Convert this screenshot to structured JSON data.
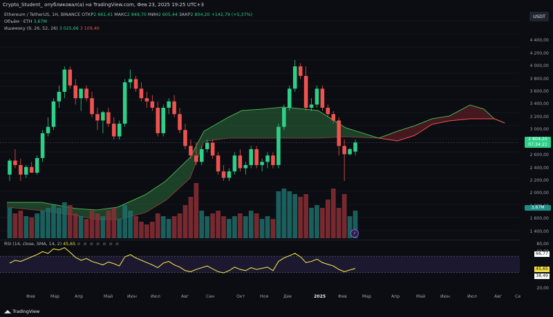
{
  "header": {
    "attribution": "Crypto_Student_ опубликовал(а) на TradingView.com, Фев 23, 2025 19:25 UTC+3"
  },
  "legend": {
    "symbol": "Ethereum / TetherUS, 1Н, BINANCE",
    "otkr_label": "ОТКР",
    "otkr_value": "2 661,41",
    "maks_label": "МАКС",
    "maks_value": "2 849,70",
    "min_label": "МИН",
    "min_value": "2 605,44",
    "zakr_label": "ЗАКР",
    "zakr_value": "2 804,20",
    "change": "+142,79 (+5,37%)",
    "volume_label": "Объём · ETH",
    "volume_value": "3,67M",
    "ichimoku_label": "Ишимоку (9, 26, 52, 26)",
    "ichimoku_v1": "3 025,66",
    "ichimoku_v2": "3 109,40"
  },
  "currency_button": "USDT",
  "price_axis": [
    "4 400,00",
    "4 200,00",
    "4 000,00",
    "3 800,00",
    "3 600,00",
    "3 400,00",
    "3 200,00",
    "3 000,00",
    "2 600,00",
    "2 400,00",
    "2 200,00",
    "2 000,00",
    "1 800,00",
    "1 600,00",
    "1 400,00"
  ],
  "price_tag": {
    "price": "2 804,20",
    "countdown": "07:34:21"
  },
  "volume_tag": "3,67M",
  "rsi": {
    "legend_label": "RSI (14, close, SMA, 14, 2)",
    "legend_value": "45,65",
    "axis": [
      "80,00",
      "60,00",
      "20,00"
    ],
    "tag_66": "66,77",
    "tag_45": "45,65",
    "tag_38": "38,49"
  },
  "time_axis": [
    "Фев",
    "Мар",
    "Апр",
    "Май",
    "Июн",
    "Июл",
    "Авг",
    "Сен",
    "Окт",
    "Ноя",
    "Дек",
    "2025",
    "Фев",
    "Мар",
    "Апр",
    "Май",
    "Июн",
    "Июл",
    "Авг",
    "Се"
  ],
  "footer": "TradingView",
  "colors": {
    "up": "#2ecf88",
    "down": "#ef5350",
    "rsi": "#f5e04a",
    "background": "#0b0d12"
  },
  "chart_data": {
    "type": "candlestick",
    "title": "Ethereum / TetherUS, 1Н, BINANCE",
    "ylim": [
      1300,
      4500
    ],
    "candles": [
      {
        "o": 2300,
        "h": 2550,
        "l": 2200,
        "c": 2520
      },
      {
        "o": 2520,
        "h": 2700,
        "l": 2400,
        "c": 2450
      },
      {
        "o": 2450,
        "h": 2550,
        "l": 2200,
        "c": 2300
      },
      {
        "o": 2300,
        "h": 2450,
        "l": 2250,
        "c": 2420
      },
      {
        "o": 2420,
        "h": 2500,
        "l": 2330,
        "c": 2330
      },
      {
        "o": 2330,
        "h": 2600,
        "l": 2300,
        "c": 2560
      },
      {
        "o": 2560,
        "h": 3000,
        "l": 2500,
        "c": 2950
      },
      {
        "o": 2950,
        "h": 3200,
        "l": 2900,
        "c": 3050
      },
      {
        "o": 3050,
        "h": 3500,
        "l": 3000,
        "c": 3450
      },
      {
        "o": 3450,
        "h": 3700,
        "l": 3350,
        "c": 3600
      },
      {
        "o": 3600,
        "h": 4000,
        "l": 3500,
        "c": 3950
      },
      {
        "o": 3950,
        "h": 4000,
        "l": 3650,
        "c": 3700
      },
      {
        "o": 3700,
        "h": 3800,
        "l": 3400,
        "c": 3500
      },
      {
        "o": 3500,
        "h": 3650,
        "l": 3300,
        "c": 3650
      },
      {
        "o": 3650,
        "h": 3700,
        "l": 3450,
        "c": 3500
      },
      {
        "o": 3500,
        "h": 3600,
        "l": 3200,
        "c": 3250
      },
      {
        "o": 3250,
        "h": 3350,
        "l": 3000,
        "c": 3150
      },
      {
        "o": 3150,
        "h": 3300,
        "l": 2950,
        "c": 3280
      },
      {
        "o": 3280,
        "h": 3350,
        "l": 3050,
        "c": 3100
      },
      {
        "o": 3100,
        "h": 3200,
        "l": 2850,
        "c": 2900
      },
      {
        "o": 2900,
        "h": 3150,
        "l": 2850,
        "c": 3100
      },
      {
        "o": 3100,
        "h": 3800,
        "l": 3050,
        "c": 3750
      },
      {
        "o": 3750,
        "h": 3950,
        "l": 3650,
        "c": 3800
      },
      {
        "o": 3800,
        "h": 3850,
        "l": 3600,
        "c": 3650
      },
      {
        "o": 3650,
        "h": 3750,
        "l": 3450,
        "c": 3500
      },
      {
        "o": 3500,
        "h": 3600,
        "l": 3350,
        "c": 3450
      },
      {
        "o": 3450,
        "h": 3550,
        "l": 3300,
        "c": 3350
      },
      {
        "o": 3350,
        "h": 3450,
        "l": 2900,
        "c": 2950
      },
      {
        "o": 2950,
        "h": 3400,
        "l": 2900,
        "c": 3350
      },
      {
        "o": 3350,
        "h": 3500,
        "l": 3250,
        "c": 3450
      },
      {
        "o": 3450,
        "h": 3550,
        "l": 3200,
        "c": 3250
      },
      {
        "o": 3250,
        "h": 3350,
        "l": 2950,
        "c": 3000
      },
      {
        "o": 3000,
        "h": 3100,
        "l": 2700,
        "c": 2750
      },
      {
        "o": 2750,
        "h": 2850,
        "l": 2550,
        "c": 2600
      },
      {
        "o": 2600,
        "h": 2800,
        "l": 2450,
        "c": 2500
      },
      {
        "o": 2500,
        "h": 2750,
        "l": 2450,
        "c": 2700
      },
      {
        "o": 2700,
        "h": 2850,
        "l": 2650,
        "c": 2800
      },
      {
        "o": 2800,
        "h": 2850,
        "l": 2550,
        "c": 2600
      },
      {
        "o": 2600,
        "h": 2650,
        "l": 2300,
        "c": 2350
      },
      {
        "o": 2350,
        "h": 2450,
        "l": 2200,
        "c": 2250
      },
      {
        "o": 2250,
        "h": 2400,
        "l": 2200,
        "c": 2350
      },
      {
        "o": 2350,
        "h": 2650,
        "l": 2300,
        "c": 2600
      },
      {
        "o": 2600,
        "h": 2700,
        "l": 2350,
        "c": 2400
      },
      {
        "o": 2400,
        "h": 2500,
        "l": 2300,
        "c": 2450
      },
      {
        "o": 2450,
        "h": 2750,
        "l": 2400,
        "c": 2700
      },
      {
        "o": 2700,
        "h": 2750,
        "l": 2400,
        "c": 2450
      },
      {
        "o": 2450,
        "h": 2550,
        "l": 2350,
        "c": 2500
      },
      {
        "o": 2500,
        "h": 2650,
        "l": 2400,
        "c": 2600
      },
      {
        "o": 2600,
        "h": 2650,
        "l": 2400,
        "c": 2450
      },
      {
        "o": 2450,
        "h": 3100,
        "l": 2400,
        "c": 3050
      },
      {
        "o": 3050,
        "h": 3400,
        "l": 3000,
        "c": 3350
      },
      {
        "o": 3350,
        "h": 3700,
        "l": 3300,
        "c": 3650
      },
      {
        "o": 3650,
        "h": 4100,
        "l": 3600,
        "c": 4000
      },
      {
        "o": 4000,
        "h": 4050,
        "l": 3800,
        "c": 3850
      },
      {
        "o": 3850,
        "h": 4000,
        "l": 3300,
        "c": 3350
      },
      {
        "o": 3350,
        "h": 3500,
        "l": 3300,
        "c": 3400
      },
      {
        "o": 3400,
        "h": 3700,
        "l": 3350,
        "c": 3650
      },
      {
        "o": 3650,
        "h": 3700,
        "l": 3300,
        "c": 3350
      },
      {
        "o": 3350,
        "h": 3400,
        "l": 3200,
        "c": 3250
      },
      {
        "o": 3250,
        "h": 3300,
        "l": 3100,
        "c": 3150
      },
      {
        "o": 3150,
        "h": 3200,
        "l": 2600,
        "c": 2750
      },
      {
        "o": 2750,
        "h": 2850,
        "l": 2200,
        "c": 2620
      },
      {
        "o": 2620,
        "h": 2720,
        "l": 2600,
        "c": 2700
      },
      {
        "o": 2661,
        "h": 2850,
        "l": 2605,
        "c": 2804
      }
    ],
    "volumes": [
      {
        "v": 0.55,
        "up": true
      },
      {
        "v": 0.45,
        "up": false
      },
      {
        "v": 0.5,
        "up": false
      },
      {
        "v": 0.4,
        "up": true
      },
      {
        "v": 0.38,
        "up": false
      },
      {
        "v": 0.45,
        "up": true
      },
      {
        "v": 0.5,
        "up": true
      },
      {
        "v": 0.55,
        "up": true
      },
      {
        "v": 0.6,
        "up": true
      },
      {
        "v": 0.55,
        "up": true
      },
      {
        "v": 0.65,
        "up": true
      },
      {
        "v": 0.6,
        "up": false
      },
      {
        "v": 0.45,
        "up": false
      },
      {
        "v": 0.4,
        "up": true
      },
      {
        "v": 0.35,
        "up": false
      },
      {
        "v": 0.5,
        "up": false
      },
      {
        "v": 0.45,
        "up": false
      },
      {
        "v": 0.4,
        "up": true
      },
      {
        "v": 0.5,
        "up": false
      },
      {
        "v": 0.55,
        "up": false
      },
      {
        "v": 0.35,
        "up": true
      },
      {
        "v": 0.6,
        "up": true
      },
      {
        "v": 0.5,
        "up": true
      },
      {
        "v": 0.4,
        "up": false
      },
      {
        "v": 0.3,
        "up": false
      },
      {
        "v": 0.25,
        "up": false
      },
      {
        "v": 0.3,
        "up": false
      },
      {
        "v": 0.45,
        "up": false
      },
      {
        "v": 0.4,
        "up": true
      },
      {
        "v": 0.35,
        "up": true
      },
      {
        "v": 0.4,
        "up": false
      },
      {
        "v": 0.45,
        "up": false
      },
      {
        "v": 0.6,
        "up": false
      },
      {
        "v": 0.75,
        "up": false
      },
      {
        "v": 1.0,
        "up": false
      },
      {
        "v": 0.5,
        "up": true
      },
      {
        "v": 0.4,
        "up": true
      },
      {
        "v": 0.45,
        "up": false
      },
      {
        "v": 0.5,
        "up": false
      },
      {
        "v": 0.4,
        "up": false
      },
      {
        "v": 0.35,
        "up": true
      },
      {
        "v": 0.4,
        "up": true
      },
      {
        "v": 0.45,
        "up": false
      },
      {
        "v": 0.4,
        "up": true
      },
      {
        "v": 0.5,
        "up": true
      },
      {
        "v": 0.45,
        "up": false
      },
      {
        "v": 0.35,
        "up": true
      },
      {
        "v": 0.4,
        "up": true
      },
      {
        "v": 0.35,
        "up": false
      },
      {
        "v": 0.85,
        "up": true
      },
      {
        "v": 0.9,
        "up": true
      },
      {
        "v": 0.85,
        "up": true
      },
      {
        "v": 0.8,
        "up": true
      },
      {
        "v": 0.75,
        "up": false
      },
      {
        "v": 0.8,
        "up": false
      },
      {
        "v": 0.55,
        "up": true
      },
      {
        "v": 0.6,
        "up": true
      },
      {
        "v": 0.55,
        "up": false
      },
      {
        "v": 0.7,
        "up": false
      },
      {
        "v": 0.9,
        "up": false
      },
      {
        "v": 0.55,
        "up": false
      },
      {
        "v": 0.8,
        "up": false
      },
      {
        "v": 0.4,
        "up": true
      },
      {
        "v": 0.5,
        "up": true
      }
    ],
    "rsi_values": [
      55,
      60,
      58,
      62,
      66,
      70,
      75,
      72,
      80,
      78,
      82,
      74,
      65,
      60,
      63,
      58,
      55,
      52,
      57,
      54,
      50,
      66,
      70,
      64,
      60,
      56,
      52,
      47,
      55,
      58,
      52,
      48,
      42,
      40,
      44,
      47,
      50,
      45,
      40,
      38,
      42,
      48,
      44,
      42,
      47,
      44,
      46,
      48,
      42,
      58,
      64,
      68,
      72,
      66,
      56,
      58,
      62,
      56,
      53,
      50,
      44,
      40,
      43,
      45.65
    ],
    "rsi_ylim": [
      20,
      90
    ],
    "rsi_tags": [
      66.77,
      45.65,
      38.49
    ]
  }
}
